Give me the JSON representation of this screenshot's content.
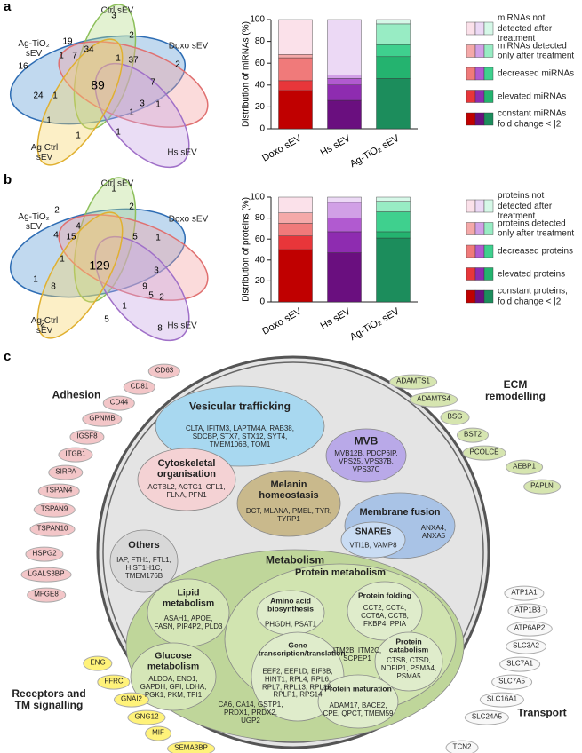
{
  "panel_labels": [
    "a",
    "b",
    "c"
  ],
  "venn_a": {
    "sets": [
      "Ag-TiO₂ sEV",
      "Ctrl sEV",
      "Doxo sEV",
      "Hs sEV",
      "Ag Ctrl sEV"
    ],
    "counts": [
      3,
      2,
      19,
      34,
      37,
      2,
      16,
      1,
      7,
      1,
      89,
      7,
      1,
      3,
      24,
      1,
      1,
      1,
      1,
      1
    ]
  },
  "venn_b": {
    "sets": [
      "Ag-TiO₂ sEV",
      "Ctrl sEV",
      "Doxo sEV",
      "Hs sEV",
      "Ag Ctrl sEV"
    ],
    "counts": [
      1,
      2,
      2,
      4,
      15,
      5,
      1,
      4,
      129,
      1,
      3,
      8,
      1,
      9,
      5,
      2,
      2,
      5,
      8,
      1
    ]
  },
  "chart_data": [
    {
      "type": "bar",
      "stacked": true,
      "y_label": "Distribution of miRNAs (%)",
      "categories": [
        "Doxo sEV",
        "Hs sEV",
        "Ag-TiO₂ sEV"
      ],
      "ylim": [
        0,
        100
      ],
      "yticks": [
        0,
        20,
        40,
        60,
        80,
        100
      ],
      "series": [
        {
          "name": "constant miRNAs fold change < |2|",
          "colors": [
            "#c00000",
            "#6a0f7f",
            "#1c8d5c"
          ],
          "values": [
            35,
            26,
            46
          ]
        },
        {
          "name": "elevated miRNAs",
          "colors": [
            "#e8363a",
            "#8e2cb0",
            "#24b36f"
          ],
          "values": [
            9,
            14,
            20
          ]
        },
        {
          "name": "decreased miRNAs",
          "colors": [
            "#f07a7a",
            "#b15ad0",
            "#3fd08e"
          ],
          "values": [
            21,
            6,
            11
          ]
        },
        {
          "name": "miRNAs detected only after treatment",
          "colors": [
            "#f4a9a9",
            "#d1a0e6",
            "#98ecc4"
          ],
          "values": [
            3,
            3,
            19
          ]
        },
        {
          "name": "miRNAs not detected after treatment",
          "colors": [
            "#fbe1ea",
            "#ecd9f5",
            "#d6f8e8"
          ],
          "values": [
            32,
            51,
            4
          ]
        }
      ]
    },
    {
      "type": "bar",
      "stacked": true,
      "y_label": "Distribution of proteins (%)",
      "categories": [
        "Doxo sEV",
        "Hs sEV",
        "Ag-TiO₂ sEV"
      ],
      "ylim": [
        0,
        100
      ],
      "yticks": [
        0,
        20,
        40,
        60,
        80,
        100
      ],
      "series": [
        {
          "name": "constant proteins, fold change < |2|",
          "colors": [
            "#c00000",
            "#6a0f7f",
            "#1c8d5c"
          ],
          "values": [
            50,
            47,
            61
          ]
        },
        {
          "name": "elevated proteins",
          "colors": [
            "#e8363a",
            "#8e2cb0",
            "#24b36f"
          ],
          "values": [
            13,
            20,
            6
          ]
        },
        {
          "name": "decreased proteins",
          "colors": [
            "#f07a7a",
            "#b15ad0",
            "#3fd08e"
          ],
          "values": [
            12,
            13,
            19
          ]
        },
        {
          "name": "proteins detected only after treatment",
          "colors": [
            "#f4a9a9",
            "#d1a0e6",
            "#98ecc4"
          ],
          "values": [
            10,
            15,
            10
          ]
        },
        {
          "name": "proteins not detected after treatment",
          "colors": [
            "#fbe1ea",
            "#ecd9f5",
            "#d6f8e8"
          ],
          "values": [
            15,
            5,
            4
          ]
        }
      ]
    }
  ],
  "diagram": {
    "groups": [
      {
        "title": "Adhesion",
        "items": [
          "CD63",
          "CD81",
          "CD44",
          "GPNMB",
          "IGSF8",
          "ITGB1",
          "SIRPA",
          "TSPAN4",
          "TSPAN9",
          "TSPAN10",
          "HSPG2",
          "LGALS3BP",
          "MFGE8"
        ]
      },
      {
        "title": "ECM remodelling",
        "items": [
          "ADAMTS1",
          "ADAMTS4",
          "BSG",
          "BST2",
          "PCOLCE",
          "AEBP1",
          "PAPLN"
        ]
      },
      {
        "title": "Transport",
        "items": [
          "ATP1A1",
          "ATP1B3",
          "ATP6AP2",
          "SLC3A2",
          "SLC7A1",
          "SLC7A5",
          "SLC16A1",
          "SLC24A5",
          "TCN2"
        ]
      },
      {
        "title": "Receptors and TM signalling",
        "items": [
          "ENG",
          "FFRC",
          "GNAI2",
          "GNG12",
          "MIF",
          "SEMA3BP"
        ]
      }
    ],
    "compartments": [
      {
        "title": "Vesicular trafficking",
        "genes": "CLTA, IFITM3, LAPTM4A, RAB38, SDCBP, STX7, STX12, SYT4, TMEM106B, TOM1"
      },
      {
        "title": "MVB",
        "genes": "MVB12B, PDCP6IP, VPS25, VPS37B, VPS37C"
      },
      {
        "title": "Cytoskeletal organisation",
        "genes": "ACTBL2, ACTG1, CFL1, FLNA, PFN1"
      },
      {
        "title": "Melanin homeostasis",
        "genes": "DCT, MLANA, PMEL, TYR, TYRP1"
      },
      {
        "title": "Membrane fusion",
        "genes": "ANXA4, ANXA5"
      },
      {
        "title": "SNAREs",
        "genes": "VTI1B, VAMP8"
      },
      {
        "title": "Others",
        "genes": "IAP, FTH1, FTL1, HIST1H1C, TMEM176B"
      },
      {
        "title": "Metabolism"
      },
      {
        "title": "Lipid metabolism",
        "genes": "ASAH1, APOE, FASN, PIP4P2, PLD3"
      },
      {
        "title": "Glucose metabolism",
        "genes": "ALDOA, ENO1, GAPDH, GPI, LDHA, PGK1, PKM, TPI1"
      },
      {
        "genes": "CA6, CA14, GSTP1, PRDX1, PRDX2, UGP2"
      },
      {
        "title": "Protein metabolism"
      },
      {
        "title": "Amino acid biosynthesis",
        "genes": "PHGDH, PSAT1"
      },
      {
        "title": "Protein folding",
        "genes": "CCT2, CCT4, CCT6A, CCT8, FKBP4, PPIA"
      },
      {
        "title": "Gene transcription/translation",
        "genes": "EEF2, EEF1D, EIF3B, HINT1, RPL4, RPL6, RPL7, RPL13, RPL18, RPLP1, RPS14"
      },
      {
        "genes": "ITM2B, ITM2C, SCPEP1"
      },
      {
        "title": "Protein catabolism",
        "genes": "CTSB, CTSD, NDFIP1, PSMA4, PSMA5"
      },
      {
        "title": "Protein maturation",
        "genes": "ADAM17, BACE2, CPE, QPCT, TMEM59"
      }
    ]
  }
}
